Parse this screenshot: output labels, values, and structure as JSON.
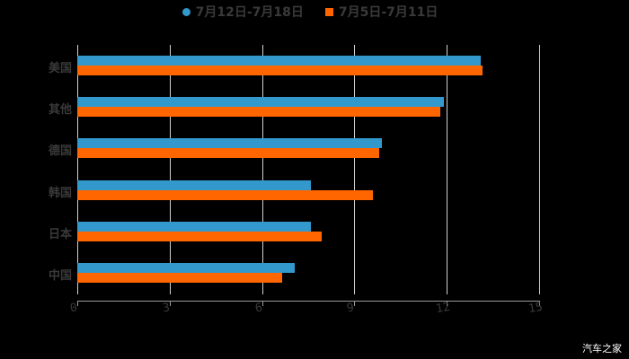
{
  "chart_data": {
    "type": "bar",
    "orientation": "horizontal",
    "title": "",
    "categories": [
      "美国",
      "其他",
      "德国",
      "韩国",
      "日本",
      "中国"
    ],
    "series": [
      {
        "name": "7月12日-7月18日",
        "color": "#3399cc",
        "values": [
          13.1,
          11.9,
          9.9,
          7.6,
          7.6,
          7.05
        ]
      },
      {
        "name": "7月5日-7月11日",
        "color": "#ff6600",
        "values": [
          13.15,
          11.8,
          9.8,
          9.6,
          7.95,
          6.65
        ]
      }
    ],
    "xlabel": "",
    "ylabel": "",
    "xlim": [
      0,
      15
    ],
    "xticks": [
      "0",
      "3",
      "6",
      "9",
      "12",
      "15"
    ],
    "grid": true,
    "legend_position": "top"
  },
  "legend": {
    "s1": "7月12日-7月18日",
    "s2": "7月5日-7月11日"
  },
  "watermark": "汽车之家"
}
